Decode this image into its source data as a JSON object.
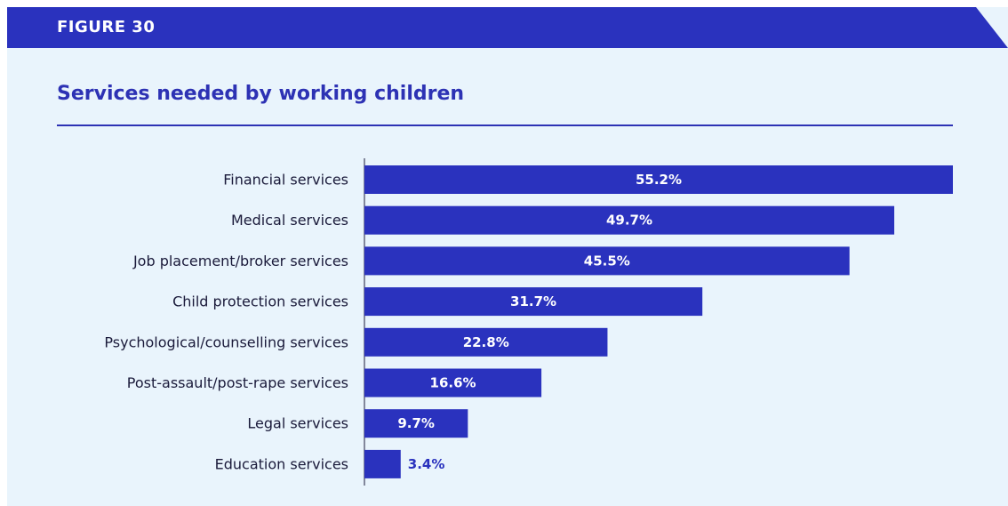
{
  "figure_label": "FIGURE 30",
  "colors": {
    "bar": "#2a32be",
    "banner": "#2a32be",
    "background": "#e9f4fc",
    "title": "#2d32b4"
  },
  "chart_data": {
    "type": "bar",
    "orientation": "horizontal",
    "title": "Services needed by working children",
    "xlabel": "",
    "ylabel": "",
    "xlim": [
      0,
      55.2
    ],
    "grid": false,
    "categories": [
      "Financial services",
      "Medical services",
      "Job placement/broker services",
      "Child protection services",
      "Psychological/counselling services",
      "Post-assault/post-rape services",
      "Legal services",
      "Education services"
    ],
    "values": [
      55.2,
      49.7,
      45.5,
      31.7,
      22.8,
      16.6,
      9.7,
      3.4
    ],
    "value_labels": [
      "55.2%",
      "49.7%",
      "45.5%",
      "31.7%",
      "22.8%",
      "16.6%",
      "9.7%",
      "3.4%"
    ]
  }
}
